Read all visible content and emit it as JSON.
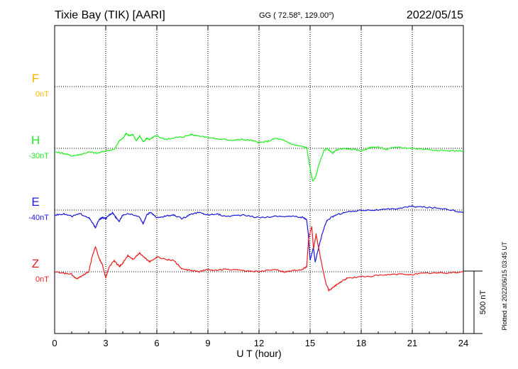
{
  "header": {
    "station": "Tixie Bay (TIK)  [AARI]",
    "coords": "GG ( 72.58",
    "coords_deg": "o",
    "coords_mid": ", 129.00",
    "coords_end": ")",
    "date": "2022/05/15"
  },
  "footer": {
    "plotted": "Plotted at 2022/06/15 03:45 UT"
  },
  "chart_data": {
    "type": "line",
    "xlabel": "U T (hour)",
    "xlim": [
      0,
      24
    ],
    "xticks": [
      "0",
      "3",
      "6",
      "9",
      "12",
      "15",
      "18",
      "21",
      "24"
    ],
    "scale_bar": {
      "label": "500 nT",
      "value_nT": 500
    },
    "colors": {
      "F": "#ffb300",
      "H": "#22ee22",
      "E": "#1a1adc",
      "Z": "#ee1c1c"
    },
    "series": [
      {
        "name": "F",
        "baseline": "0nT",
        "x": [],
        "y": []
      },
      {
        "name": "H",
        "baseline": "-30nT",
        "x": [
          0,
          0.5,
          1.0,
          1.5,
          2.0,
          2.5,
          3.0,
          3.5,
          3.8,
          4.0,
          4.2,
          4.4,
          4.6,
          4.8,
          5.0,
          5.2,
          5.4,
          5.6,
          5.8,
          6.0,
          6.5,
          7.0,
          7.5,
          8.0,
          8.5,
          9.0,
          9.5,
          10.0,
          10.5,
          11.0,
          11.5,
          12.0,
          12.5,
          13.0,
          13.5,
          14.0,
          14.5,
          14.8,
          14.95,
          15.05,
          15.15,
          15.3,
          15.5,
          15.8,
          16.0,
          16.3,
          16.6,
          17.0,
          17.5,
          18.0,
          18.5,
          19.0,
          19.5,
          20.0,
          21.0,
          22.0,
          23.0,
          24.0
        ],
        "y": [
          -30,
          -40,
          -60,
          -50,
          -30,
          -40,
          -20,
          -10,
          60,
          80,
          120,
          100,
          110,
          60,
          100,
          50,
          80,
          70,
          90,
          100,
          70,
          85,
          90,
          110,
          100,
          90,
          75,
          70,
          65,
          70,
          65,
          45,
          55,
          80,
          60,
          30,
          15,
          5,
          -120,
          -200,
          -260,
          -240,
          -140,
          -20,
          0,
          -40,
          -10,
          0,
          -10,
          -20,
          5,
          10,
          -10,
          10,
          0,
          -10,
          -20,
          -20
        ]
      },
      {
        "name": "E",
        "baseline": "-40nT",
        "x": [
          0,
          0.5,
          1.0,
          1.5,
          2.0,
          2.2,
          2.4,
          2.6,
          2.8,
          3.0,
          3.2,
          3.4,
          3.6,
          3.8,
          4.0,
          4.5,
          5.0,
          5.2,
          5.4,
          5.6,
          6.0,
          6.5,
          7.0,
          7.5,
          8.0,
          8.5,
          9.0,
          9.5,
          10.0,
          11.0,
          12.0,
          13.0,
          14.0,
          14.6,
          14.8,
          14.9,
          15.0,
          15.1,
          15.2,
          15.3,
          15.5,
          15.8,
          16.0,
          16.5,
          17.0,
          18.0,
          19.0,
          20.0,
          21.0,
          22.0,
          23.0,
          24.0
        ],
        "y": [
          -40,
          -30,
          -50,
          -30,
          -60,
          -100,
          -140,
          -80,
          -60,
          -70,
          -40,
          -20,
          -60,
          -90,
          -40,
          -30,
          -60,
          -110,
          -40,
          -20,
          -60,
          -50,
          -40,
          -70,
          -30,
          -20,
          -40,
          -30,
          -50,
          -40,
          -60,
          -50,
          -50,
          -60,
          -80,
          -200,
          -400,
          -350,
          -300,
          -420,
          -300,
          -150,
          -80,
          -40,
          -20,
          0,
          0,
          10,
          30,
          20,
          10,
          -20
        ]
      },
      {
        "name": "Z",
        "baseline": "0nT",
        "x": [
          0,
          0.5,
          1.0,
          1.3,
          1.6,
          2.0,
          2.2,
          2.4,
          2.6,
          2.8,
          3.0,
          3.2,
          3.5,
          3.8,
          4.0,
          4.3,
          4.6,
          5.0,
          5.3,
          5.6,
          6.0,
          6.5,
          7.0,
          7.5,
          8.0,
          8.5,
          9.0,
          9.5,
          10.0,
          11.0,
          12.0,
          13.0,
          13.5,
          14.0,
          14.5,
          14.8,
          14.9,
          15.0,
          15.1,
          15.2,
          15.35,
          15.6,
          15.9,
          16.1,
          16.4,
          16.8,
          17.2,
          18.0,
          19.0,
          20.0,
          21.0,
          22.0,
          23.0,
          24.0
        ],
        "y": [
          0,
          -10,
          -20,
          -60,
          -30,
          0,
          120,
          200,
          110,
          60,
          -50,
          40,
          90,
          40,
          70,
          130,
          100,
          150,
          110,
          80,
          120,
          100,
          90,
          20,
          10,
          0,
          20,
          10,
          20,
          10,
          0,
          20,
          0,
          10,
          20,
          40,
          250,
          320,
          360,
          180,
          300,
          120,
          -80,
          -150,
          -120,
          -80,
          -50,
          -40,
          -30,
          -20,
          -20,
          -10,
          -10,
          0
        ]
      }
    ]
  }
}
